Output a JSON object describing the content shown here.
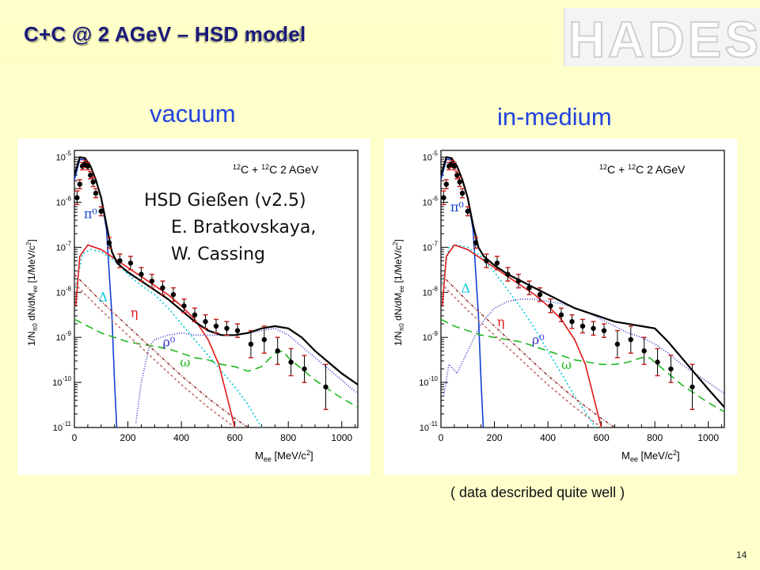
{
  "slide": {
    "title": "C+C @ 2 AGeV – HSD model",
    "logo_text": "HADES",
    "page_number": "14",
    "caption": "( data described quite well )",
    "headings": {
      "left": "vacuum",
      "right": "in-medium"
    },
    "credit": [
      "HSD Gießen (v2.5)",
      "E. Bratkovskaya,",
      "W. Cassing"
    ]
  },
  "chart_data": [
    {
      "type": "line",
      "panel": "vacuum",
      "annotation": "¹²C + ¹²C  2 AGeV",
      "xlabel": "M_ee [MeV/c²]",
      "ylabel": "1/N_π0 dN/dM_ee [1/MeV/c²]",
      "xlim": [
        0,
        1060
      ],
      "ylim_log10": [
        -11,
        -4.85
      ],
      "x_ticks": [
        0,
        200,
        400,
        600,
        800,
        1000
      ],
      "y_ticks": [
        -11,
        -10,
        -9,
        -8,
        -7,
        -6,
        -5
      ],
      "series": [
        {
          "name": "π0",
          "color": "#1040d0",
          "dash": "",
          "x": [
            0,
            20,
            40,
            60,
            80,
            100,
            120,
            140,
            150,
            160
          ],
          "y": [
            -5.5,
            -5.05,
            -5.05,
            -5.2,
            -5.5,
            -5.9,
            -6.6,
            -8.5,
            -10,
            -11.2
          ]
        },
        {
          "name": "Δ",
          "color": "#00c8d8",
          "dash": "2,3",
          "x": [
            5,
            30,
            60,
            100,
            150,
            200,
            250,
            300,
            350,
            400,
            450,
            500,
            550,
            600,
            650,
            700
          ],
          "y": [
            -7.9,
            -7.15,
            -7.05,
            -7.1,
            -7.3,
            -7.6,
            -7.85,
            -8.05,
            -8.35,
            -8.7,
            -9.05,
            -9.4,
            -9.75,
            -10.1,
            -10.5,
            -11
          ]
        },
        {
          "name": "η",
          "color": "#e01818",
          "dash": "",
          "x": [
            5,
            20,
            50,
            100,
            150,
            200,
            250,
            300,
            350,
            400,
            450,
            500,
            540,
            570,
            600,
            615
          ],
          "y": [
            -8.3,
            -7.2,
            -6.95,
            -7.05,
            -7.25,
            -7.45,
            -7.65,
            -7.85,
            -8.05,
            -8.3,
            -8.6,
            -9.05,
            -9.6,
            -10.3,
            -11,
            -11.3
          ]
        },
        {
          "name": "ρ0",
          "color": "#3838c8",
          "dash": "1,2",
          "x": [
            230,
            250,
            280,
            300,
            350,
            400,
            450,
            500,
            550,
            600,
            650,
            700,
            750,
            800,
            850,
            900,
            950,
            1000,
            1060
          ],
          "y": [
            -10.9,
            -10,
            -9.2,
            -9.05,
            -8.95,
            -8.9,
            -8.95,
            -8.95,
            -8.95,
            -8.95,
            -8.9,
            -8.85,
            -8.8,
            -8.95,
            -9.2,
            -9.45,
            -9.7,
            -9.95,
            -10.25
          ]
        },
        {
          "name": "ω",
          "color": "#20b820",
          "dash": "10,6",
          "x": [
            0,
            50,
            100,
            150,
            200,
            250,
            300,
            350,
            400,
            450,
            500,
            550,
            600,
            650,
            700,
            750,
            780,
            800,
            850,
            900,
            950,
            1000,
            1060
          ],
          "y": [
            -8.6,
            -8.75,
            -8.9,
            -9.0,
            -9.1,
            -9.15,
            -9.2,
            -9.25,
            -9.35,
            -9.45,
            -9.5,
            -9.6,
            -9.65,
            -9.75,
            -9.65,
            -9.35,
            -9.3,
            -9.45,
            -9.7,
            -9.95,
            -10.15,
            -10.35,
            -10.55
          ]
        },
        {
          "name": "",
          "color": "#a04040",
          "dash": "4,2,1,2",
          "x": [
            0,
            50,
            100,
            200,
            300,
            400,
            500,
            600,
            700
          ],
          "y": [
            -7.6,
            -7.9,
            -8.2,
            -8.75,
            -9.3,
            -9.85,
            -10.35,
            -10.8,
            -11.2
          ]
        },
        {
          "name": "",
          "color": "#c07070",
          "dash": "3,3",
          "x": [
            0,
            50,
            100,
            200,
            300,
            400,
            500,
            600,
            700
          ],
          "y": [
            -7.8,
            -8.1,
            -8.4,
            -8.95,
            -9.5,
            -10.05,
            -10.55,
            -11,
            -11.4
          ]
        },
        {
          "name": "sum",
          "color": "#000000",
          "dash": "",
          "x": [
            0,
            20,
            40,
            60,
            80,
            100,
            120,
            140,
            160,
            200,
            250,
            300,
            350,
            400,
            450,
            500,
            550,
            600,
            650,
            700,
            750,
            800,
            850,
            900,
            950,
            1000,
            1060
          ],
          "y": [
            -5.4,
            -5.0,
            -5.02,
            -5.2,
            -5.5,
            -5.9,
            -6.5,
            -7.1,
            -7.35,
            -7.55,
            -7.75,
            -7.95,
            -8.15,
            -8.4,
            -8.65,
            -8.85,
            -8.95,
            -8.95,
            -8.9,
            -8.8,
            -8.75,
            -8.8,
            -9.0,
            -9.3,
            -9.55,
            -9.8,
            -10.05
          ]
        }
      ],
      "data_points": {
        "x": [
          10,
          20,
          30,
          40,
          50,
          60,
          70,
          80,
          100,
          130,
          170,
          210,
          250,
          290,
          330,
          370,
          410,
          450,
          490,
          530,
          570,
          610,
          660,
          710,
          760,
          810,
          860,
          940
        ],
        "y": [
          -5.9,
          -5.6,
          -5.2,
          -5.15,
          -5.2,
          -5.4,
          -5.55,
          -5.8,
          -6.2,
          -6.9,
          -7.3,
          -7.35,
          -7.6,
          -7.75,
          -7.9,
          -8.05,
          -8.3,
          -8.5,
          -8.65,
          -8.75,
          -8.8,
          -8.85,
          -9.15,
          -9.05,
          -9.3,
          -9.55,
          -9.7,
          -10.1
        ],
        "err": [
          0.15,
          0.1,
          0.08,
          0.08,
          0.08,
          0.08,
          0.1,
          0.1,
          0.1,
          0.12,
          0.15,
          0.15,
          0.15,
          0.15,
          0.15,
          0.15,
          0.15,
          0.15,
          0.15,
          0.15,
          0.15,
          0.15,
          0.3,
          0.3,
          0.3,
          0.3,
          0.3,
          0.5
        ]
      }
    },
    {
      "type": "line",
      "panel": "in-medium",
      "annotation": "¹²C + ¹²C  2 AGeV",
      "xlabel": "M_ee [MeV/c²]",
      "ylabel": "1/N_π0 dN/dM_ee [1/MeV/c²]",
      "xlim": [
        0,
        1060
      ],
      "ylim_log10": [
        -11,
        -4.85
      ],
      "x_ticks": [
        0,
        200,
        400,
        600,
        800,
        1000
      ],
      "y_ticks": [
        -11,
        -10,
        -9,
        -8,
        -7,
        -6,
        -5
      ],
      "series": [
        {
          "name": "π0",
          "color": "#1040d0",
          "dash": "",
          "x": [
            0,
            20,
            40,
            60,
            80,
            100,
            120,
            140,
            150,
            160
          ],
          "y": [
            -5.5,
            -5.05,
            -5.05,
            -5.2,
            -5.5,
            -5.9,
            -6.6,
            -8.5,
            -10,
            -11.2
          ]
        },
        {
          "name": "Δ",
          "color": "#00c8d8",
          "dash": "2,3",
          "x": [
            5,
            30,
            60,
            100,
            150,
            200,
            250,
            300,
            350,
            400,
            450,
            500,
            550,
            600,
            650,
            700
          ],
          "y": [
            -7.8,
            -7.0,
            -6.95,
            -7.0,
            -7.2,
            -7.55,
            -7.95,
            -8.35,
            -8.8,
            -9.3,
            -9.8,
            -10.3,
            -10.75,
            -11.2,
            -11.5,
            -11.8
          ]
        },
        {
          "name": "η",
          "color": "#e01818",
          "dash": "",
          "x": [
            5,
            20,
            50,
            100,
            150,
            200,
            250,
            300,
            350,
            400,
            450,
            500,
            540,
            570,
            600,
            615
          ],
          "y": [
            -8.3,
            -7.2,
            -6.95,
            -7.05,
            -7.25,
            -7.45,
            -7.65,
            -7.85,
            -8.05,
            -8.3,
            -8.6,
            -9.05,
            -9.6,
            -10.3,
            -11,
            -11.3
          ]
        },
        {
          "name": "ρ0",
          "color": "#3838c8",
          "dash": "1,2",
          "x": [
            10,
            30,
            60,
            100,
            150,
            200,
            250,
            300,
            350,
            400,
            450,
            500,
            550,
            600,
            650,
            700,
            750,
            800,
            850,
            900,
            950,
            1000,
            1060
          ],
          "y": [
            -10.3,
            -9.6,
            -9.8,
            -9.3,
            -8.7,
            -8.35,
            -8.2,
            -8.15,
            -8.15,
            -8.2,
            -8.25,
            -8.35,
            -8.45,
            -8.6,
            -8.75,
            -8.9,
            -9.0,
            -9.15,
            -9.35,
            -9.6,
            -9.8,
            -10.0,
            -10.25
          ]
        },
        {
          "name": "ω",
          "color": "#20b820",
          "dash": "10,6",
          "x": [
            0,
            50,
            100,
            150,
            200,
            250,
            300,
            350,
            400,
            450,
            500,
            550,
            600,
            650,
            700,
            750,
            780,
            800,
            850,
            900,
            950,
            1000,
            1060
          ],
          "y": [
            -8.6,
            -8.75,
            -8.85,
            -8.95,
            -9.0,
            -9.05,
            -9.1,
            -9.2,
            -9.3,
            -9.4,
            -9.5,
            -9.55,
            -9.6,
            -9.6,
            -9.55,
            -9.45,
            -9.45,
            -9.55,
            -9.8,
            -10.05,
            -10.25,
            -10.45,
            -10.65
          ]
        },
        {
          "name": "",
          "color": "#a04040",
          "dash": "4,2,1,2",
          "x": [
            0,
            50,
            100,
            200,
            300,
            400,
            500,
            600,
            700
          ],
          "y": [
            -7.6,
            -7.9,
            -8.2,
            -8.75,
            -9.3,
            -9.85,
            -10.35,
            -10.8,
            -11.2
          ]
        },
        {
          "name": "",
          "color": "#c07070",
          "dash": "3,3",
          "x": [
            0,
            50,
            100,
            200,
            300,
            400,
            500,
            600,
            700
          ],
          "y": [
            -7.8,
            -8.1,
            -8.4,
            -8.95,
            -9.5,
            -10.05,
            -10.55,
            -11,
            -11.4
          ]
        },
        {
          "name": "sum",
          "color": "#000000",
          "dash": "",
          "x": [
            0,
            20,
            40,
            60,
            80,
            100,
            120,
            140,
            160,
            200,
            250,
            300,
            350,
            400,
            450,
            500,
            550,
            600,
            650,
            700,
            750,
            800,
            850,
            900,
            950,
            1000,
            1060
          ],
          "y": [
            -5.4,
            -5.0,
            -5.02,
            -5.2,
            -5.5,
            -5.9,
            -6.5,
            -7.0,
            -7.2,
            -7.4,
            -7.6,
            -7.75,
            -7.9,
            -8.05,
            -8.2,
            -8.35,
            -8.45,
            -8.55,
            -8.65,
            -8.7,
            -8.75,
            -8.8,
            -9.1,
            -9.45,
            -9.8,
            -10.15,
            -10.55
          ]
        }
      ],
      "data_points": {
        "x": [
          10,
          20,
          30,
          40,
          50,
          60,
          70,
          80,
          100,
          130,
          170,
          210,
          250,
          290,
          330,
          370,
          410,
          450,
          490,
          530,
          570,
          610,
          660,
          710,
          760,
          810,
          860,
          940
        ],
        "y": [
          -5.9,
          -5.6,
          -5.2,
          -5.15,
          -5.2,
          -5.4,
          -5.55,
          -5.8,
          -6.2,
          -6.9,
          -7.3,
          -7.35,
          -7.6,
          -7.75,
          -7.9,
          -8.05,
          -8.3,
          -8.5,
          -8.65,
          -8.75,
          -8.8,
          -8.85,
          -9.15,
          -9.05,
          -9.3,
          -9.55,
          -9.7,
          -10.1
        ],
        "err": [
          0.15,
          0.1,
          0.08,
          0.08,
          0.08,
          0.08,
          0.1,
          0.1,
          0.1,
          0.12,
          0.15,
          0.15,
          0.15,
          0.15,
          0.15,
          0.15,
          0.15,
          0.15,
          0.15,
          0.15,
          0.15,
          0.15,
          0.3,
          0.3,
          0.3,
          0.3,
          0.3,
          0.5
        ]
      }
    }
  ]
}
